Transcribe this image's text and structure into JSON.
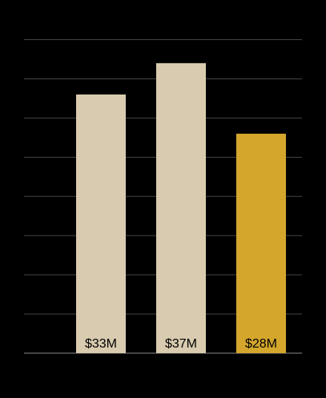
{
  "chart_data": {
    "type": "bar",
    "categories": [
      null,
      null,
      null
    ],
    "values": [
      33,
      37,
      28
    ],
    "value_labels": [
      "$33M",
      "$37M",
      "$28M"
    ],
    "colors": [
      "#d9cbaf",
      "#d9cbaf",
      "#d4a72c"
    ],
    "ylim": [
      0,
      40
    ],
    "yticks": [
      0,
      5,
      10,
      15,
      20,
      25,
      30,
      35,
      40
    ],
    "grid": true
  }
}
